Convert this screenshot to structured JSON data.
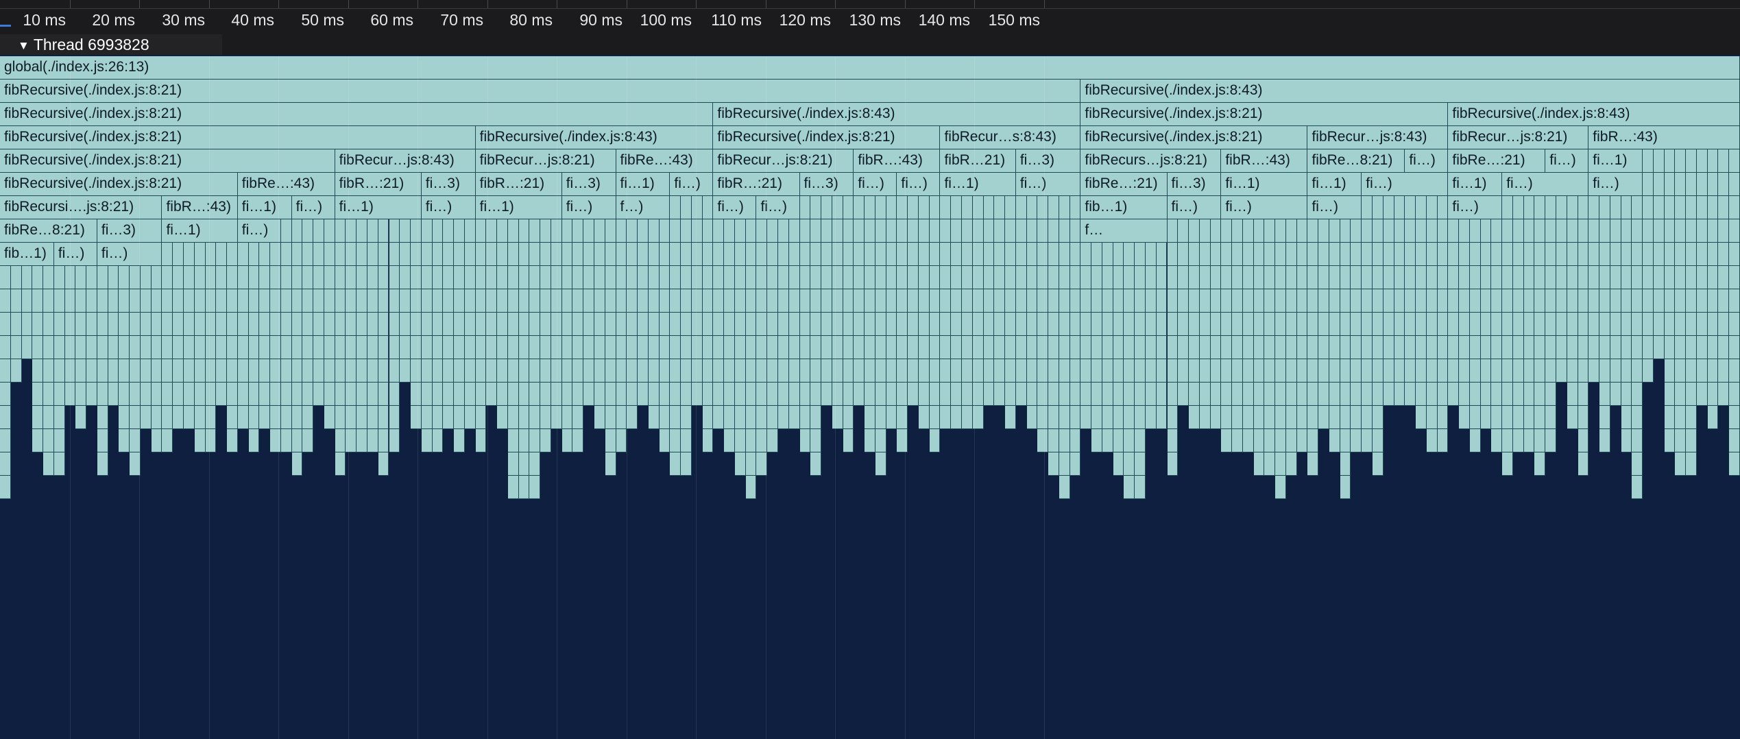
{
  "ruler": {
    "ticks": [
      "10 ms",
      "20 ms",
      "30 ms",
      "40 ms",
      "50 ms",
      "60 ms",
      "70 ms",
      "80 ms",
      "90 ms",
      "100 ms",
      "110 ms",
      "120 ms",
      "130 ms",
      "140 ms",
      "150 ms"
    ]
  },
  "thread": {
    "name": "Thread 6993828",
    "expanded_icon": "triangle-down-icon"
  },
  "flame": {
    "colors": {
      "frame": "#a3d1cf",
      "frame_border": "#1f4a55",
      "background": "#0e1f3f",
      "text": "#0d1b26"
    },
    "rows": [
      [
        [
          "global(./index.js:26:13)",
          0,
          161
        ]
      ],
      [
        [
          "fibRecursive(./index.js:8:21)",
          0,
          100
        ],
        [
          "fibRecursive(./index.js:8:43)",
          100,
          161
        ]
      ],
      [
        [
          "fibRecursive(./index.js:8:21)",
          0,
          66
        ],
        [
          "fibRecursive(./index.js:8:43)",
          66,
          100
        ],
        [
          "fibRecursive(./index.js:8:21)",
          100,
          134
        ],
        [
          "fibRecursive(./index.js:8:43)",
          134,
          161
        ]
      ],
      [
        [
          "fibRecursive(./index.js:8:21)",
          0,
          44
        ],
        [
          "fibRecursive(./index.js:8:43)",
          44,
          66
        ],
        [
          "fibRecursive(./index.js:8:21)",
          66,
          87
        ],
        [
          "fibRecur…s:8:43)",
          87,
          100
        ],
        [
          "fibRecursive(./index.js:8:21)",
          100,
          121
        ],
        [
          "fibRecur…js:8:43)",
          121,
          134
        ],
        [
          "fibRecur…js:8:21)",
          134,
          147
        ],
        [
          "fibR…:43)",
          147,
          161
        ]
      ],
      [
        [
          "fibRecursive(./index.js:8:21)",
          0,
          31
        ],
        [
          "fibRecur…js:8:43)",
          31,
          44
        ],
        [
          "fibRecur…js:8:21)",
          44,
          57
        ],
        [
          "fibRe…:43)",
          57,
          66
        ],
        [
          "fibRecur…js:8:21)",
          66,
          79
        ],
        [
          "fibR…:43)",
          79,
          87
        ],
        [
          "fibR…21)",
          87,
          94
        ],
        [
          "fi…3)",
          94,
          100
        ],
        [
          "fibRecurs…js:8:21)",
          100,
          113
        ],
        [
          "fibR…:43)",
          113,
          121
        ],
        [
          "fibRe…8:21)",
          121,
          130
        ],
        [
          "fi…)",
          130,
          134
        ],
        [
          "fibRe…:21)",
          134,
          143
        ],
        [
          "fi…)",
          143,
          147
        ],
        [
          "fi…1)",
          147,
          152
        ]
      ],
      [
        [
          "fibRecursive(./index.js:8:21)",
          0,
          22
        ],
        [
          "fibRe…:43)",
          22,
          31
        ],
        [
          "fibR…:21)",
          31,
          39
        ],
        [
          "fi…3)",
          39,
          44
        ],
        [
          "fibR…:21)",
          44,
          52
        ],
        [
          "fi…3)",
          52,
          57
        ],
        [
          "fi…1)",
          57,
          62
        ],
        [
          "fi…)",
          62,
          66
        ],
        [
          "fibR…:21)",
          66,
          74
        ],
        [
          "fi…3)",
          74,
          79
        ],
        [
          "fi…)",
          79,
          83
        ],
        [
          "fi…)",
          83,
          87
        ],
        [
          "fi…1)",
          87,
          94
        ],
        [
          "fi…)",
          94,
          100
        ],
        [
          "fibRe…:21)",
          100,
          108
        ],
        [
          "fi…3)",
          108,
          113
        ],
        [
          "fi…1)",
          113,
          121
        ],
        [
          "fi…1)",
          121,
          126
        ],
        [
          "fi…)",
          126,
          134
        ],
        [
          "fi…1)",
          134,
          139
        ],
        [
          "fi…)",
          139,
          147
        ],
        [
          "fi…)",
          147,
          152
        ]
      ],
      [
        [
          "fibRecursi….js:8:21)",
          0,
          15
        ],
        [
          "fibR…:43)",
          15,
          22
        ],
        [
          "fi…1)",
          22,
          27
        ],
        [
          "fi…)",
          27,
          31
        ],
        [
          "fi…1)",
          31,
          39
        ],
        [
          "fi…)",
          39,
          44
        ],
        [
          "fi…1)",
          44,
          52
        ],
        [
          "fi…)",
          52,
          57
        ],
        [
          "f…)",
          57,
          62
        ],
        [
          "fi…)",
          66,
          70
        ],
        [
          "fi…)",
          70,
          74
        ],
        [
          "fib…1)",
          100,
          108
        ],
        [
          "fi…)",
          108,
          113
        ],
        [
          "fi…)",
          113,
          121
        ],
        [
          "fi…)",
          121,
          126
        ],
        [
          "fi…)",
          134,
          139
        ]
      ],
      [
        [
          "fibRe…8:21)",
          0,
          9
        ],
        [
          "fi…3)",
          9,
          15
        ],
        [
          "fi…1)",
          15,
          22
        ],
        [
          "fi…)",
          22,
          26
        ],
        [
          "f…",
          100,
          108
        ]
      ],
      [
        [
          "fib…1)",
          0,
          5
        ],
        [
          "fi…)",
          5,
          9
        ],
        [
          "fi…)",
          9,
          15
        ]
      ]
    ],
    "column_depths": [
      19,
      14,
      13,
      17,
      18,
      18,
      15,
      16,
      15,
      18,
      15,
      17,
      18,
      16,
      17,
      17,
      16,
      16,
      17,
      17,
      15,
      17,
      16,
      17,
      16,
      17,
      17,
      18,
      17,
      15,
      16,
      18,
      17,
      17,
      17,
      18,
      17,
      14,
      16,
      17,
      17,
      16,
      17,
      16,
      17,
      15,
      16,
      19,
      19,
      19,
      17,
      16,
      17,
      17,
      15,
      16,
      18,
      17,
      16,
      15,
      16,
      17,
      18,
      18,
      15,
      17,
      16,
      17,
      18,
      19,
      18,
      17,
      16,
      16,
      17,
      18,
      15,
      16,
      17,
      15,
      17,
      18,
      16,
      17,
      15,
      16,
      17,
      16,
      16,
      16,
      16,
      15,
      15,
      16,
      15,
      16,
      17,
      18,
      19,
      18,
      16,
      17,
      17,
      18,
      19,
      19,
      16,
      16,
      18,
      15,
      16,
      16,
      16,
      17,
      17,
      17,
      18,
      18,
      19,
      18,
      17,
      18,
      16,
      17,
      19,
      17,
      17,
      18,
      15,
      15,
      15,
      16,
      17,
      17,
      15,
      16,
      17,
      16,
      17,
      18,
      17,
      17,
      18,
      17,
      14,
      16,
      18,
      14,
      17,
      15,
      17
    ]
  }
}
